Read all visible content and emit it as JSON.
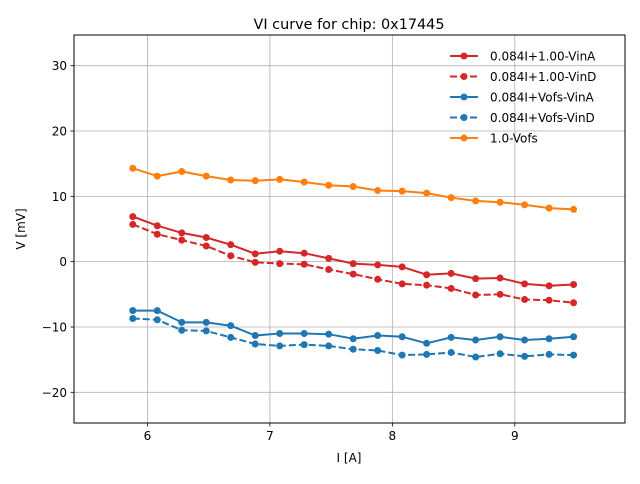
{
  "chart_data": {
    "type": "line",
    "title": "VI curve for chip: 0x17445",
    "xlabel": "I [A]",
    "ylabel": "V [mV]",
    "xlim": [
      5.4,
      9.9
    ],
    "ylim": [
      -24.7,
      34.7
    ],
    "xticks": [
      6,
      7,
      8,
      9
    ],
    "yticks": [
      -20,
      -10,
      0,
      10,
      20,
      30
    ],
    "xtick_labels": [
      "6",
      "7",
      "8",
      "9"
    ],
    "ytick_labels": [
      "−20",
      "−10",
      "0",
      "10",
      "20",
      "30"
    ],
    "grid": true,
    "legend_position": "top-right",
    "x": [
      5.88,
      6.08,
      6.28,
      6.48,
      6.68,
      6.88,
      7.08,
      7.28,
      7.48,
      7.68,
      7.88,
      8.08,
      8.28,
      8.48,
      8.68,
      8.88,
      9.08,
      9.28,
      9.48
    ],
    "series": [
      {
        "name": "0.084I+1.00-VinA",
        "color": "#d62728",
        "dashed": false,
        "values": [
          6.9,
          5.5,
          4.4,
          3.7,
          2.6,
          1.2,
          1.6,
          1.3,
          0.5,
          -0.3,
          -0.5,
          -0.8,
          -2.0,
          -1.8,
          -2.6,
          -2.5,
          -3.4,
          -3.7,
          -3.5
        ]
      },
      {
        "name": "0.084I+1.00-VinD",
        "color": "#d62728",
        "dashed": true,
        "values": [
          5.7,
          4.2,
          3.3,
          2.4,
          0.9,
          -0.1,
          -0.3,
          -0.4,
          -1.2,
          -1.9,
          -2.7,
          -3.4,
          -3.6,
          -4.1,
          -5.1,
          -5.0,
          -5.8,
          -5.9,
          -6.3
        ]
      },
      {
        "name": "0.084I+Vofs-VinA",
        "color": "#1f77b4",
        "dashed": false,
        "values": [
          -7.5,
          -7.5,
          -9.3,
          -9.3,
          -9.8,
          -11.3,
          -11.0,
          -11.0,
          -11.1,
          -11.8,
          -11.3,
          -11.5,
          -12.5,
          -11.6,
          -12.0,
          -11.5,
          -12.0,
          -11.8,
          -11.5
        ]
      },
      {
        "name": "0.084I+Vofs-VinD",
        "color": "#1f77b4",
        "dashed": true,
        "values": [
          -8.7,
          -8.9,
          -10.5,
          -10.6,
          -11.6,
          -12.6,
          -12.9,
          -12.7,
          -12.9,
          -13.4,
          -13.6,
          -14.3,
          -14.2,
          -13.9,
          -14.6,
          -14.1,
          -14.5,
          -14.2,
          -14.3
        ]
      },
      {
        "name": "1.0-Vofs",
        "color": "#ff7f0e",
        "dashed": false,
        "values": [
          14.3,
          13.1,
          13.8,
          13.1,
          12.5,
          12.4,
          12.6,
          12.2,
          11.7,
          11.5,
          10.9,
          10.8,
          10.5,
          9.8,
          9.3,
          9.1,
          8.7,
          8.2,
          8.0
        ]
      }
    ]
  }
}
